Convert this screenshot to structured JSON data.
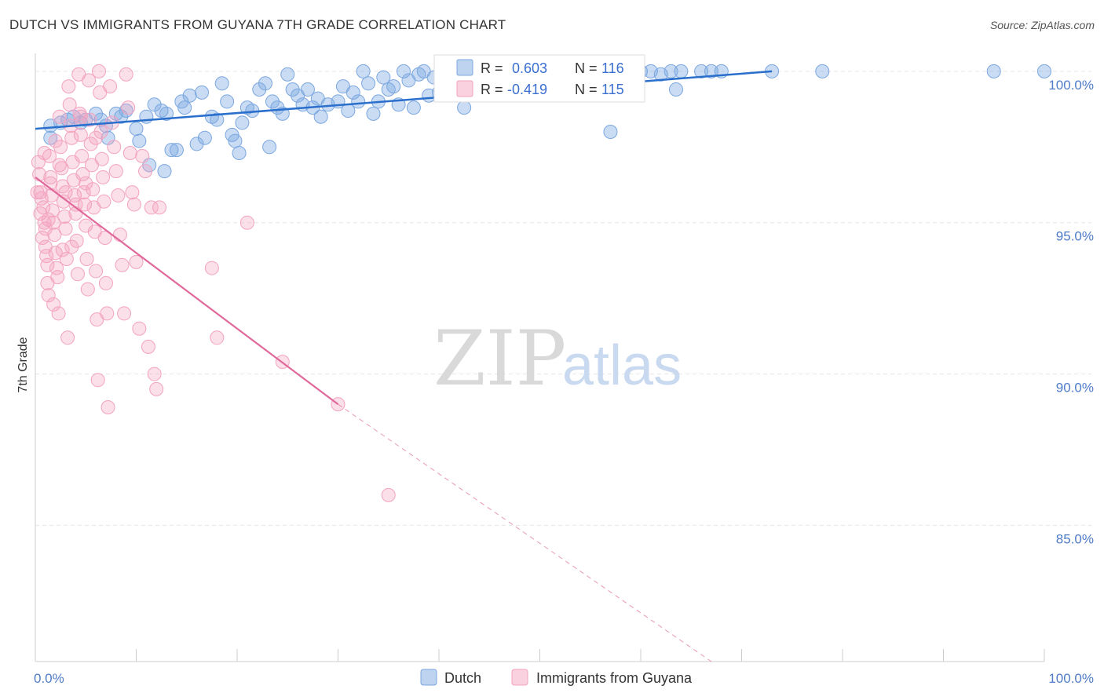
{
  "header": {
    "title": "DUTCH VS IMMIGRANTS FROM GUYANA 7TH GRADE CORRELATION CHART",
    "source": "Source: ZipAtlas.com"
  },
  "watermark": {
    "zip": "ZIP",
    "atlas": "atlas"
  },
  "chart_data": {
    "type": "scatter",
    "title": "DUTCH VS IMMIGRANTS FROM GUYANA 7TH GRADE CORRELATION CHART",
    "xlabel": "",
    "ylabel": "7th Grade",
    "xlim": [
      0,
      100
    ],
    "ylim": [
      80.5,
      100.8
    ],
    "x_tick_labels": [
      "0.0%",
      "100.0%"
    ],
    "y_ticks": [
      {
        "value": 100,
        "label": "100.0%"
      },
      {
        "value": 95,
        "label": "95.0%"
      },
      {
        "value": 90,
        "label": "90.0%"
      },
      {
        "value": 85,
        "label": "85.0%"
      }
    ],
    "colors": {
      "dutch": "#7ba7e0",
      "dutch_line": "#2a6fcc",
      "guyana": "#f3a3bf",
      "guyana_line": "#e0699a"
    },
    "legend": [
      {
        "name": "Dutch",
        "r_label": "R =",
        "r": "0.603",
        "n_label": "N =",
        "n": "116"
      },
      {
        "name": "Immigrants from Guyana",
        "r_label": "R =",
        "r": "-0.419",
        "n_label": "N =",
        "n": "115"
      }
    ],
    "series": [
      {
        "name": "Dutch",
        "trend": {
          "x0": 0,
          "y0": 98.1,
          "x1": 73,
          "y1": 100.0
        },
        "points": [
          [
            1.5,
            98.2
          ],
          [
            1.5,
            97.8
          ],
          [
            2.5,
            98.3
          ],
          [
            3.2,
            98.4
          ],
          [
            3.8,
            98.5
          ],
          [
            4.5,
            98.3
          ],
          [
            5.0,
            98.4
          ],
          [
            6.0,
            98.6
          ],
          [
            6.5,
            98.4
          ],
          [
            7.0,
            98.2
          ],
          [
            7.2,
            97.8
          ],
          [
            8.0,
            98.6
          ],
          [
            8.5,
            98.5
          ],
          [
            9.0,
            98.7
          ],
          [
            10.0,
            98.1
          ],
          [
            10.3,
            97.7
          ],
          [
            11.0,
            98.5
          ],
          [
            11.3,
            96.9
          ],
          [
            11.8,
            98.9
          ],
          [
            12.5,
            98.7
          ],
          [
            12.8,
            96.7
          ],
          [
            13.0,
            98.6
          ],
          [
            13.5,
            97.4
          ],
          [
            14.0,
            97.4
          ],
          [
            14.5,
            99.0
          ],
          [
            14.8,
            98.8
          ],
          [
            15.3,
            99.2
          ],
          [
            16.0,
            97.6
          ],
          [
            16.5,
            99.3
          ],
          [
            16.8,
            97.8
          ],
          [
            17.5,
            98.5
          ],
          [
            18.0,
            98.4
          ],
          [
            18.5,
            99.6
          ],
          [
            19.0,
            99.0
          ],
          [
            19.5,
            97.9
          ],
          [
            19.8,
            97.7
          ],
          [
            20.2,
            97.3
          ],
          [
            20.5,
            98.3
          ],
          [
            21.0,
            98.8
          ],
          [
            21.5,
            98.7
          ],
          [
            22.2,
            99.4
          ],
          [
            22.8,
            99.6
          ],
          [
            23.2,
            97.5
          ],
          [
            23.5,
            99.0
          ],
          [
            24.0,
            98.8
          ],
          [
            24.5,
            98.6
          ],
          [
            25.0,
            99.9
          ],
          [
            25.5,
            99.4
          ],
          [
            26.0,
            99.2
          ],
          [
            26.5,
            98.9
          ],
          [
            27.0,
            99.4
          ],
          [
            27.5,
            98.8
          ],
          [
            28.0,
            99.1
          ],
          [
            28.3,
            98.5
          ],
          [
            29.0,
            98.9
          ],
          [
            30.0,
            99.0
          ],
          [
            30.5,
            99.5
          ],
          [
            31.0,
            98.7
          ],
          [
            31.5,
            99.3
          ],
          [
            32.0,
            99.0
          ],
          [
            32.5,
            100.0
          ],
          [
            33.0,
            99.6
          ],
          [
            33.5,
            98.6
          ],
          [
            34.0,
            99.0
          ],
          [
            34.5,
            99.8
          ],
          [
            35.0,
            99.4
          ],
          [
            35.5,
            99.5
          ],
          [
            36.0,
            98.9
          ],
          [
            36.5,
            100.0
          ],
          [
            37.0,
            99.7
          ],
          [
            37.5,
            98.8
          ],
          [
            38.0,
            99.9
          ],
          [
            38.5,
            100.0
          ],
          [
            39.0,
            99.2
          ],
          [
            39.5,
            99.8
          ],
          [
            40.0,
            99.3
          ],
          [
            40.5,
            100.0
          ],
          [
            41.0,
            99.8
          ],
          [
            41.5,
            99.4
          ],
          [
            42.0,
            99.9
          ],
          [
            42.5,
            98.8
          ],
          [
            43.0,
            100.0
          ],
          [
            43.5,
            99.5
          ],
          [
            44.0,
            99.7
          ],
          [
            44.5,
            99.3
          ],
          [
            45.0,
            99.8
          ],
          [
            45.5,
            99.6
          ],
          [
            46.0,
            100.0
          ],
          [
            47.0,
            99.8
          ],
          [
            48.0,
            100.0
          ],
          [
            48.5,
            99.5
          ],
          [
            49.0,
            100.0
          ],
          [
            50.0,
            99.9
          ],
          [
            51.0,
            100.0
          ],
          [
            52.0,
            100.0
          ],
          [
            52.5,
            99.8
          ],
          [
            53.0,
            100.0
          ],
          [
            54.0,
            100.0
          ],
          [
            55.0,
            99.9
          ],
          [
            56.0,
            100.0
          ],
          [
            57.0,
            98.0
          ],
          [
            58.0,
            100.0
          ],
          [
            59.0,
            99.7
          ],
          [
            60.0,
            100.0
          ],
          [
            61.0,
            100.0
          ],
          [
            62.0,
            99.9
          ],
          [
            63.0,
            100.0
          ],
          [
            63.5,
            99.4
          ],
          [
            64.0,
            100.0
          ],
          [
            66.0,
            100.0
          ],
          [
            67.0,
            100.0
          ],
          [
            68.0,
            100.0
          ],
          [
            73.0,
            100.0
          ],
          [
            78.0,
            100.0
          ],
          [
            95.0,
            100.0
          ],
          [
            100.0,
            100.0
          ]
        ]
      },
      {
        "name": "Immigrants from Guyana",
        "trend": {
          "x0": 0,
          "y0": 96.5,
          "x1": 30,
          "y1": 89.0,
          "dash_x1": 67,
          "dash_y1": 80.5
        },
        "points": [
          [
            0.3,
            97.0
          ],
          [
            0.4,
            96.6
          ],
          [
            0.5,
            96.0
          ],
          [
            0.6,
            95.8
          ],
          [
            0.8,
            95.5
          ],
          [
            0.9,
            95.0
          ],
          [
            1.0,
            94.8
          ],
          [
            1.0,
            94.2
          ],
          [
            1.2,
            93.6
          ],
          [
            1.2,
            93.0
          ],
          [
            1.3,
            92.6
          ],
          [
            1.4,
            97.2
          ],
          [
            1.5,
            96.3
          ],
          [
            1.6,
            95.9
          ],
          [
            1.7,
            95.4
          ],
          [
            1.8,
            95.0
          ],
          [
            1.9,
            94.6
          ],
          [
            2.0,
            94.0
          ],
          [
            2.1,
            93.5
          ],
          [
            2.2,
            93.2
          ],
          [
            2.3,
            92.0
          ],
          [
            2.4,
            98.5
          ],
          [
            2.5,
            97.5
          ],
          [
            2.6,
            96.8
          ],
          [
            2.7,
            96.2
          ],
          [
            2.8,
            95.7
          ],
          [
            2.9,
            95.2
          ],
          [
            3.0,
            94.8
          ],
          [
            3.1,
            93.8
          ],
          [
            3.2,
            91.2
          ],
          [
            3.3,
            99.5
          ],
          [
            3.4,
            98.9
          ],
          [
            3.5,
            98.2
          ],
          [
            3.6,
            97.8
          ],
          [
            3.7,
            97.0
          ],
          [
            3.8,
            96.4
          ],
          [
            3.9,
            95.9
          ],
          [
            4.0,
            95.3
          ],
          [
            4.1,
            94.4
          ],
          [
            4.2,
            93.3
          ],
          [
            4.3,
            99.9
          ],
          [
            4.4,
            98.6
          ],
          [
            4.5,
            97.9
          ],
          [
            4.6,
            97.2
          ],
          [
            4.7,
            96.6
          ],
          [
            4.8,
            96.0
          ],
          [
            4.9,
            95.6
          ],
          [
            5.0,
            94.9
          ],
          [
            5.1,
            93.8
          ],
          [
            5.2,
            92.8
          ],
          [
            5.3,
            99.7
          ],
          [
            5.4,
            98.4
          ],
          [
            5.5,
            97.6
          ],
          [
            5.6,
            96.9
          ],
          [
            5.7,
            96.1
          ],
          [
            5.8,
            95.5
          ],
          [
            5.9,
            94.7
          ],
          [
            6.0,
            93.4
          ],
          [
            6.1,
            91.8
          ],
          [
            6.2,
            89.8
          ],
          [
            6.3,
            100.0
          ],
          [
            6.4,
            99.3
          ],
          [
            6.5,
            98.0
          ],
          [
            6.6,
            97.1
          ],
          [
            6.7,
            96.5
          ],
          [
            6.8,
            95.7
          ],
          [
            6.9,
            94.5
          ],
          [
            7.0,
            93.0
          ],
          [
            7.1,
            92.0
          ],
          [
            7.2,
            88.9
          ],
          [
            7.4,
            99.5
          ],
          [
            7.6,
            98.3
          ],
          [
            7.8,
            97.5
          ],
          [
            8.0,
            96.7
          ],
          [
            8.2,
            95.9
          ],
          [
            8.4,
            94.6
          ],
          [
            8.6,
            93.6
          ],
          [
            8.8,
            92.0
          ],
          [
            9.0,
            99.9
          ],
          [
            9.2,
            98.8
          ],
          [
            9.4,
            97.3
          ],
          [
            9.6,
            96.0
          ],
          [
            9.8,
            95.6
          ],
          [
            10.0,
            93.7
          ],
          [
            10.3,
            91.5
          ],
          [
            10.6,
            97.2
          ],
          [
            10.9,
            96.7
          ],
          [
            11.2,
            90.9
          ],
          [
            11.5,
            95.5
          ],
          [
            11.8,
            90.0
          ],
          [
            12.0,
            89.5
          ],
          [
            12.3,
            95.5
          ],
          [
            0.5,
            95.3
          ],
          [
            1.5,
            96.5
          ],
          [
            2.0,
            97.7
          ],
          [
            3.0,
            96.0
          ],
          [
            4.0,
            95.6
          ],
          [
            5.0,
            96.3
          ],
          [
            6.0,
            97.8
          ],
          [
            0.7,
            94.5
          ],
          [
            1.1,
            93.9
          ],
          [
            1.8,
            92.3
          ],
          [
            2.4,
            96.9
          ],
          [
            3.6,
            94.2
          ],
          [
            17.5,
            93.5
          ],
          [
            18.0,
            91.2
          ],
          [
            21.0,
            95.0
          ],
          [
            24.5,
            90.4
          ],
          [
            30.0,
            89.0
          ],
          [
            35.0,
            86.0
          ],
          [
            0.9,
            97.3
          ],
          [
            1.3,
            95.1
          ],
          [
            2.7,
            94.1
          ],
          [
            4.5,
            98.5
          ],
          [
            0.2,
            96.0
          ]
        ]
      }
    ]
  }
}
